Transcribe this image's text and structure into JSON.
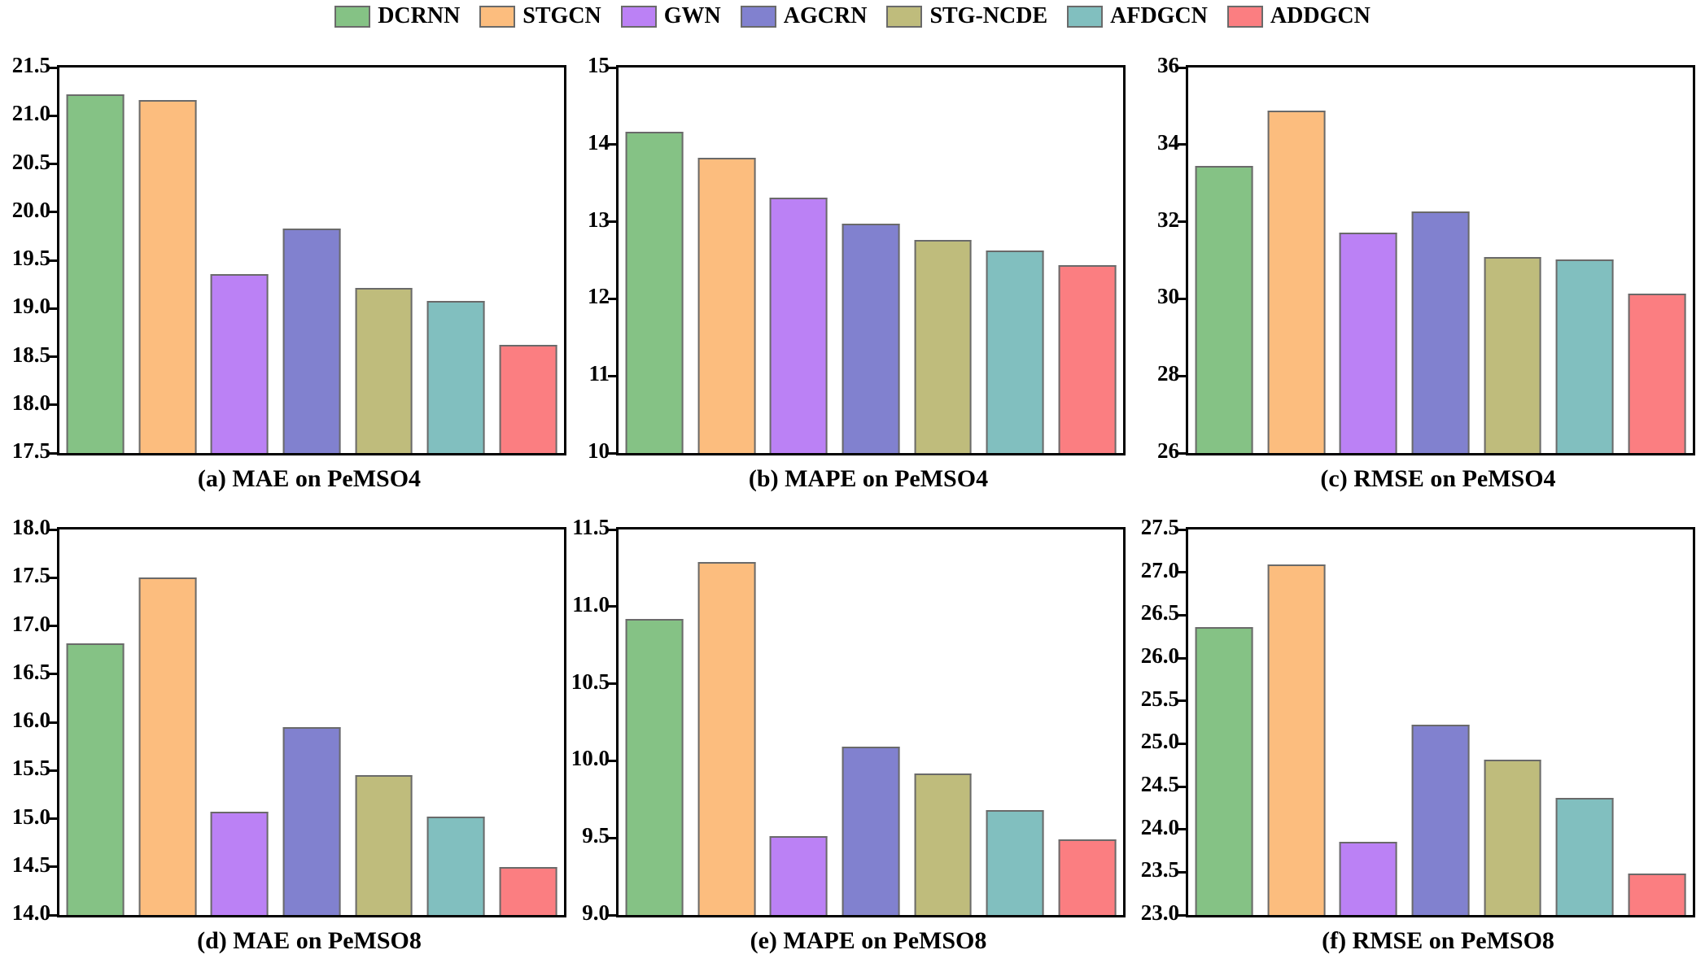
{
  "figure": {
    "background": "#ffffff",
    "text_color": "#000000"
  },
  "legend": {
    "position": "top-center",
    "edge_color": "#6a6a6a",
    "items": [
      {
        "label": "DCRNN",
        "color": "#85c285"
      },
      {
        "label": "STGCN",
        "color": "#fcbd7e"
      },
      {
        "label": "GWN",
        "color": "#bb81f5"
      },
      {
        "label": "AGCRN",
        "color": "#8181cf"
      },
      {
        "label": "STG-NCDE",
        "color": "#bfbc7c"
      },
      {
        "label": "AFDGCN",
        "color": "#81bfbf"
      },
      {
        "label": "ADDGCN",
        "color": "#fb7e81"
      }
    ]
  },
  "chart_data": [
    {
      "type": "bar",
      "title": "(a) MAE on PeMSO4",
      "categories": [
        "DCRNN",
        "STGCN",
        "GWN",
        "AGCRN",
        "STG-NCDE",
        "AFDGCN",
        "ADDGCN"
      ],
      "values": [
        21.22,
        21.16,
        19.36,
        19.83,
        19.21,
        19.08,
        18.62
      ],
      "xlabel": "",
      "ylabel": "",
      "ylim": [
        17.5,
        21.5
      ],
      "yticks": [
        "17.5",
        "18.0",
        "18.5",
        "19.0",
        "19.5",
        "20.0",
        "20.5",
        "21.0",
        "21.5"
      ],
      "grid": false,
      "legend_position": "figure-top"
    },
    {
      "type": "bar",
      "title": "(b) MAPE on PeMSO4",
      "categories": [
        "DCRNN",
        "STGCN",
        "GWN",
        "AGCRN",
        "STG-NCDE",
        "AFDGCN",
        "ADDGCN"
      ],
      "values": [
        14.17,
        13.83,
        13.31,
        12.97,
        12.76,
        12.63,
        12.44
      ],
      "xlabel": "",
      "ylabel": "",
      "ylim": [
        10,
        15
      ],
      "yticks": [
        "10",
        "11",
        "12",
        "13",
        "14",
        "15"
      ],
      "grid": false,
      "legend_position": "figure-top"
    },
    {
      "type": "bar",
      "title": "(c) RMSE on PeMSO4",
      "categories": [
        "DCRNN",
        "STGCN",
        "GWN",
        "AGCRN",
        "STG-NCDE",
        "AFDGCN",
        "ADDGCN"
      ],
      "values": [
        33.44,
        34.89,
        31.72,
        32.26,
        31.09,
        31.03,
        30.14
      ],
      "xlabel": "",
      "ylabel": "",
      "ylim": [
        26,
        36
      ],
      "yticks": [
        "26",
        "28",
        "30",
        "32",
        "34",
        "36"
      ],
      "grid": false,
      "legend_position": "figure-top"
    },
    {
      "type": "bar",
      "title": "(d) MAE on PeMSO8",
      "categories": [
        "DCRNN",
        "STGCN",
        "GWN",
        "AGCRN",
        "STG-NCDE",
        "AFDGCN",
        "ADDGCN"
      ],
      "values": [
        16.82,
        17.5,
        15.07,
        15.95,
        15.45,
        15.02,
        14.5
      ],
      "xlabel": "",
      "ylabel": "",
      "ylim": [
        14.0,
        18.0
      ],
      "yticks": [
        "14.0",
        "14.5",
        "15.0",
        "15.5",
        "16.0",
        "16.5",
        "17.0",
        "17.5",
        "18.0"
      ],
      "grid": false,
      "legend_position": "figure-top"
    },
    {
      "type": "bar",
      "title": "(e) MAPE on PeMSO8",
      "categories": [
        "DCRNN",
        "STGCN",
        "GWN",
        "AGCRN",
        "STG-NCDE",
        "AFDGCN",
        "ADDGCN"
      ],
      "values": [
        10.92,
        11.29,
        9.51,
        10.09,
        9.92,
        9.68,
        9.49
      ],
      "xlabel": "",
      "ylabel": "",
      "ylim": [
        9.0,
        11.5
      ],
      "yticks": [
        "9.0",
        "9.5",
        "10.0",
        "10.5",
        "11.0",
        "11.5"
      ],
      "grid": false,
      "legend_position": "figure-top"
    },
    {
      "type": "bar",
      "title": "(f) RMSE on PeMSO8",
      "categories": [
        "DCRNN",
        "STGCN",
        "GWN",
        "AGCRN",
        "STG-NCDE",
        "AFDGCN",
        "ADDGCN"
      ],
      "values": [
        26.36,
        27.09,
        23.85,
        25.22,
        24.81,
        24.37,
        23.48
      ],
      "xlabel": "",
      "ylabel": "",
      "ylim": [
        23.0,
        27.5
      ],
      "yticks": [
        "23.0",
        "23.5",
        "24.0",
        "24.5",
        "25.0",
        "25.5",
        "26.0",
        "26.5",
        "27.0",
        "27.5"
      ],
      "grid": false,
      "legend_position": "figure-top"
    }
  ]
}
